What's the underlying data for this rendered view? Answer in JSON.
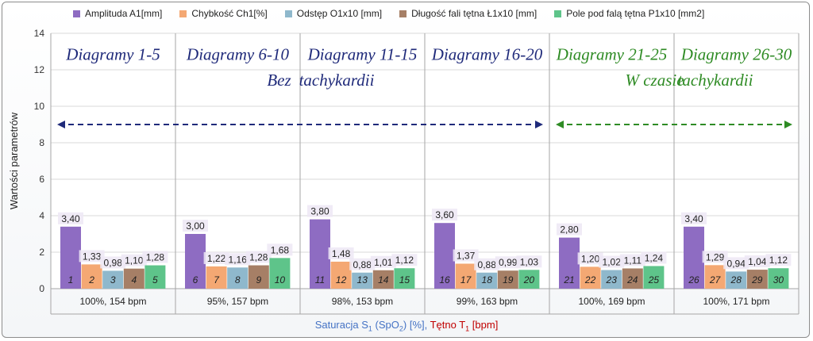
{
  "chart_data": {
    "type": "bar",
    "ylabel": "Wartości parametrów",
    "ylim": [
      0,
      14
    ],
    "yticks": [
      0,
      2,
      4,
      6,
      8,
      10,
      12,
      14
    ],
    "grid": true,
    "legend_position": "top",
    "xlabel_parts": [
      {
        "text": "Saturacja S",
        "sub": "1",
        "rest": " (SpO",
        "sub2": "2",
        "rest2": ") [%], ",
        "color": "#4472c4"
      },
      {
        "text": "Tętno T",
        "sub": "1",
        "rest": " [bpm]",
        "sub2": "",
        "rest2": "",
        "color": "#c00000"
      }
    ],
    "categories": [
      "100%, 154 bpm",
      "95%, 157 bpm",
      "98%, 153 bpm",
      "99%, 163 bpm",
      "100%, 169 bpm",
      "100%, 171 bpm"
    ],
    "series": [
      {
        "name": "Amplituda A1[mm]",
        "color": "#8e6cc2",
        "values": [
          3.4,
          3.0,
          3.8,
          3.6,
          2.8,
          3.4
        ]
      },
      {
        "name": "Chybkość Ch1[%]",
        "color": "#f4a873",
        "values": [
          1.33,
          1.22,
          1.48,
          1.37,
          1.2,
          1.29
        ]
      },
      {
        "name": "Odstęp O1x10 [mm]",
        "color": "#8fb8cc",
        "values": [
          0.98,
          1.16,
          0.88,
          0.88,
          1.02,
          0.94
        ]
      },
      {
        "name": "Długość fali tętna Ł1x10 [mm]",
        "color": "#a67f66",
        "values": [
          1.1,
          1.28,
          1.01,
          0.99,
          1.11,
          1.04
        ]
      },
      {
        "name": "Pole pod falą tętna P1x10 [mm2]",
        "color": "#5ec48a",
        "values": [
          1.28,
          1.68,
          1.12,
          1.03,
          1.24,
          1.12
        ]
      }
    ],
    "value_labels": [
      [
        "3,40",
        "1,33",
        "0,98",
        "1,10",
        "1,28"
      ],
      [
        "3,00",
        "1,22",
        "1,16",
        "1,28",
        "1,68"
      ],
      [
        "3,80",
        "1,48",
        "0,88",
        "1,01",
        "1,12"
      ],
      [
        "3,60",
        "1,37",
        "0,88",
        "0,99",
        "1,03"
      ],
      [
        "2,80",
        "1,20",
        "1,02",
        "1,11",
        "1,24"
      ],
      [
        "3,40",
        "1,29",
        "0,94",
        "1,04",
        "1,12"
      ]
    ],
    "bar_numbers": [
      [
        "1",
        "2",
        "3",
        "4",
        "5"
      ],
      [
        "6",
        "7",
        "8",
        "9",
        "10"
      ],
      [
        "11",
        "12",
        "13",
        "14",
        "15"
      ],
      [
        "16",
        "17",
        "18",
        "19",
        "20"
      ],
      [
        "21",
        "22",
        "23",
        "24",
        "25"
      ],
      [
        "26",
        "27",
        "28",
        "29",
        "30"
      ]
    ],
    "group_titles": [
      "Diagramy 1-5",
      "Diagramy 6-10",
      "Diagramy 11-15",
      "Diagramy 16-20",
      "Diagramy 21-25",
      "Diagramy 26-30"
    ],
    "group_title_colors": [
      "#1f2a7a",
      "#1f2a7a",
      "#1f2a7a",
      "#1f2a7a",
      "#2e8b24",
      "#2e8b24"
    ],
    "annotations": [
      {
        "text": "Bez",
        "color": "#1f2a7a",
        "y": 11.4
      },
      {
        "text": "tachykardii",
        "color": "#1f2a7a",
        "y": 11.4
      },
      {
        "text": "W czasie",
        "color": "#2e8b24",
        "y": 11.4
      },
      {
        "text": "tachykardii",
        "color": "#2e8b24",
        "y": 11.4
      }
    ],
    "arrows": [
      {
        "label": "Bez tachykardii",
        "from_group": 0,
        "to_group": 3,
        "y": 9.0,
        "color": "#1f2a7a"
      },
      {
        "label": "W czasie tachykardii",
        "from_group": 4,
        "to_group": 5,
        "y": 9.0,
        "color": "#2e8b24"
      }
    ]
  }
}
